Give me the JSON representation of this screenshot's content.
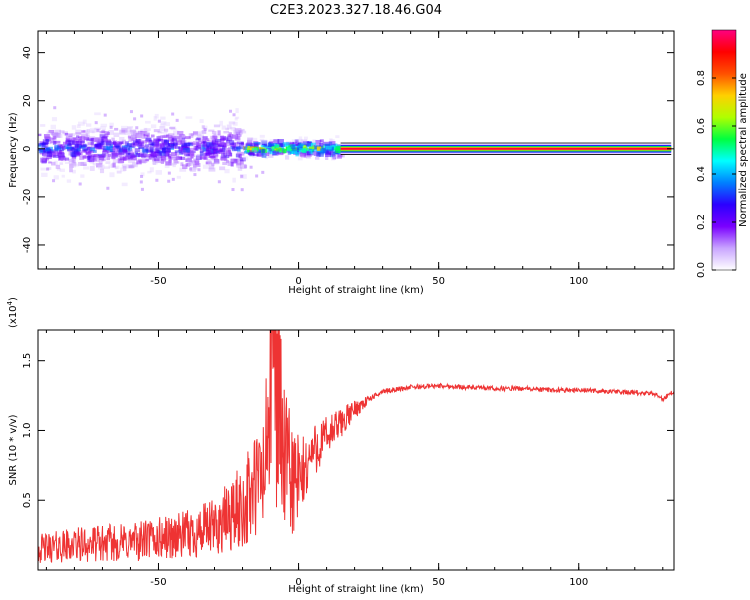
{
  "title": "C2E3.2023.327.18.46.G04",
  "chart_data": [
    {
      "type": "heatmap",
      "xlabel": "Height of straight line (km)",
      "ylabel": "Frequency (Hz)",
      "xlim": [
        -93,
        134
      ],
      "ylim": [
        -50,
        49
      ],
      "xticks": [
        -50,
        0,
        50,
        100
      ],
      "yticks": [
        -40,
        -20,
        0,
        20,
        40
      ],
      "grid": false,
      "line_frequency": 0,
      "colorbar": {
        "label": "Normalized spectral amplitude",
        "range": [
          0,
          1
        ],
        "ticks": [
          0.0,
          0.2,
          0.4,
          0.6,
          0.8
        ],
        "colors": [
          "#ffffff",
          "#c9a5ff",
          "#7a00ff",
          "#2b00ff",
          "#0080ff",
          "#00ffff",
          "#00ff40",
          "#b0ff00",
          "#ffd000",
          "#ff5000",
          "#ff0000",
          "#ff0080"
        ]
      },
      "regions": [
        {
          "x_range": [
            -93,
            -20
          ],
          "f_spread": 8,
          "amplitude": 0.3
        },
        {
          "x_range": [
            -20,
            15
          ],
          "f_spread": 3,
          "amplitude": 0.6
        },
        {
          "x_range": [
            15,
            133
          ],
          "f_spread": 0.5,
          "amplitude": 0.95
        }
      ]
    },
    {
      "type": "line",
      "xlabel": "Height of straight line (km)",
      "ylabel": "SNR (10 * v/v)",
      "scale_label": "(x10",
      "scale_exponent": "4",
      "scale_suffix": ")",
      "xlim": [
        -93,
        134
      ],
      "ylim": [
        0,
        1.72
      ],
      "xticks": [
        -50,
        0,
        50,
        100
      ],
      "yticks": [
        0.5,
        1.0,
        1.5
      ],
      "color": "#ee3333",
      "series": [
        {
          "x": [
            -93,
            -80,
            -60,
            -40,
            -30,
            -20,
            -12,
            -9,
            -5,
            0,
            5,
            10,
            15,
            20,
            25,
            30,
            40,
            50,
            60,
            70,
            80,
            90,
            100,
            110,
            120,
            128,
            130,
            131,
            133
          ],
          "y": [
            0.15,
            0.18,
            0.2,
            0.25,
            0.3,
            0.45,
            0.7,
            1.72,
            0.75,
            0.6,
            0.85,
            0.95,
            1.05,
            1.15,
            1.22,
            1.28,
            1.31,
            1.32,
            1.31,
            1.3,
            1.3,
            1.29,
            1.29,
            1.28,
            1.27,
            1.26,
            1.22,
            1.24,
            1.27
          ]
        }
      ]
    }
  ]
}
